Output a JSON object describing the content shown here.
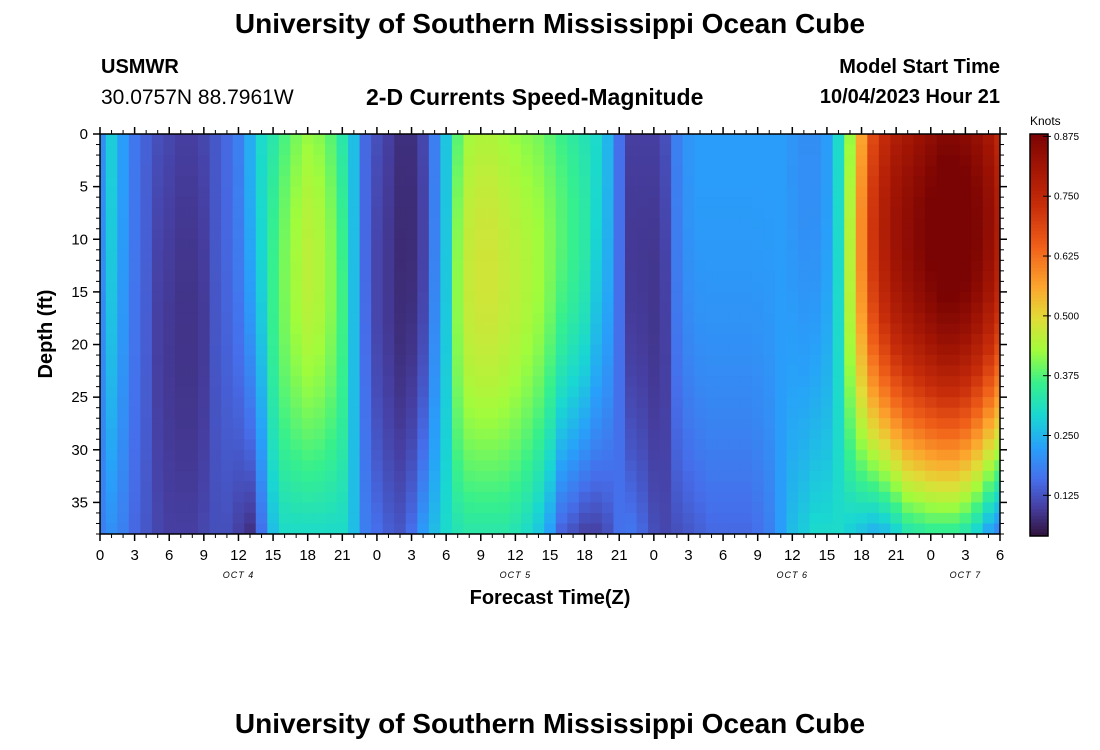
{
  "header": {
    "title": "University of Southern Mississippi Ocean Cube",
    "station": "USMWR",
    "coords": "30.0757N  88.7961W",
    "subtitle": "2-D Currents Speed-Magnitude",
    "start_label": "Model Start Time",
    "start_value": "10/04/2023 Hour 21"
  },
  "footer": {
    "title": "University of Southern Mississippi Ocean Cube"
  },
  "chart_data": {
    "type": "heatmap",
    "title": "2-D Currents Speed-Magnitude",
    "xlabel": "Forecast Time(Z)",
    "ylabel": "Depth (ft)",
    "x_unit": "forecast hours from start",
    "xlim": [
      0,
      78
    ],
    "ylim": [
      38,
      0
    ],
    "x_ticks": [
      0,
      3,
      6,
      9,
      12,
      15,
      18,
      21,
      24,
      27,
      30,
      33,
      36,
      39,
      42,
      45,
      48,
      51,
      54,
      57,
      60,
      63,
      66,
      69,
      72,
      75,
      78
    ],
    "x_tick_labels": [
      "0",
      "3",
      "6",
      "9",
      "12",
      "15",
      "18",
      "21",
      "0",
      "3",
      "6",
      "9",
      "12",
      "15",
      "18",
      "21",
      "0",
      "3",
      "6",
      "9",
      "12",
      "15",
      "18",
      "21",
      "0",
      "3",
      "6"
    ],
    "y_ticks": [
      0,
      5,
      10,
      15,
      20,
      25,
      30,
      35
    ],
    "y_tick_labels": [
      "0",
      "5",
      "10",
      "15",
      "20",
      "25",
      "30",
      "35"
    ],
    "date_labels": [
      {
        "text": "OCT 4",
        "hour": 12
      },
      {
        "text": "OCT 5",
        "hour": 36
      },
      {
        "text": "OCT 6",
        "hour": 60
      },
      {
        "text": "OCT 7",
        "hour": 75
      }
    ],
    "colorbar": {
      "title": "Knots",
      "range": [
        0.04,
        0.88
      ],
      "ticks": [
        0.125,
        0.25,
        0.375,
        0.5,
        0.625,
        0.75,
        0.875
      ],
      "tick_labels": [
        "0.125",
        "0.250",
        "0.375",
        "0.500",
        "0.625",
        "0.750",
        "0.875"
      ]
    },
    "time_hours": [
      0,
      1,
      2,
      3,
      4,
      5,
      6,
      7,
      8,
      9,
      10,
      11,
      12,
      13,
      14,
      15,
      16,
      17,
      18,
      19,
      20,
      21,
      22,
      23,
      24,
      25,
      26,
      27,
      28,
      29,
      30,
      31,
      32,
      33,
      34,
      35,
      36,
      37,
      38,
      39,
      40,
      41,
      42,
      43,
      44,
      45,
      46,
      47,
      48,
      49,
      50,
      51,
      52,
      53,
      54,
      55,
      56,
      57,
      58,
      59,
      60,
      61,
      62,
      63,
      64,
      65,
      66,
      67,
      68,
      69,
      70,
      71,
      72,
      73,
      74,
      75,
      76,
      77,
      78
    ],
    "surface_speed_knots": [
      0.2,
      0.28,
      0.22,
      0.17,
      0.14,
      0.12,
      0.11,
      0.1,
      0.1,
      0.11,
      0.13,
      0.15,
      0.18,
      0.24,
      0.3,
      0.33,
      0.37,
      0.4,
      0.42,
      0.41,
      0.38,
      0.33,
      0.26,
      0.15,
      0.12,
      0.1,
      0.08,
      0.08,
      0.11,
      0.18,
      0.27,
      0.38,
      0.43,
      0.44,
      0.44,
      0.43,
      0.42,
      0.41,
      0.4,
      0.38,
      0.36,
      0.34,
      0.32,
      0.3,
      0.25,
      0.16,
      0.1,
      0.1,
      0.1,
      0.12,
      0.18,
      0.21,
      0.22,
      0.22,
      0.22,
      0.22,
      0.22,
      0.22,
      0.22,
      0.22,
      0.21,
      0.2,
      0.2,
      0.22,
      0.3,
      0.42,
      0.56,
      0.68,
      0.74,
      0.78,
      0.8,
      0.82,
      0.84,
      0.86,
      0.86,
      0.85,
      0.83,
      0.8,
      0.75
    ],
    "bottom_speed_knots": [
      0.18,
      0.2,
      0.18,
      0.15,
      0.13,
      0.11,
      0.1,
      0.1,
      0.1,
      0.11,
      0.12,
      0.12,
      0.1,
      0.08,
      0.16,
      0.26,
      0.3,
      0.3,
      0.3,
      0.3,
      0.3,
      0.3,
      0.26,
      0.18,
      0.16,
      0.14,
      0.13,
      0.16,
      0.22,
      0.26,
      0.3,
      0.32,
      0.33,
      0.33,
      0.33,
      0.33,
      0.32,
      0.3,
      0.27,
      0.22,
      0.14,
      0.12,
      0.1,
      0.1,
      0.12,
      0.16,
      0.17,
      0.15,
      0.12,
      0.11,
      0.12,
      0.13,
      0.14,
      0.15,
      0.15,
      0.15,
      0.15,
      0.16,
      0.18,
      0.22,
      0.26,
      0.28,
      0.3,
      0.3,
      0.3,
      0.28,
      0.26,
      0.24,
      0.25,
      0.28,
      0.32,
      0.33,
      0.34,
      0.34,
      0.34,
      0.32,
      0.28,
      0.22,
      0.18
    ]
  }
}
